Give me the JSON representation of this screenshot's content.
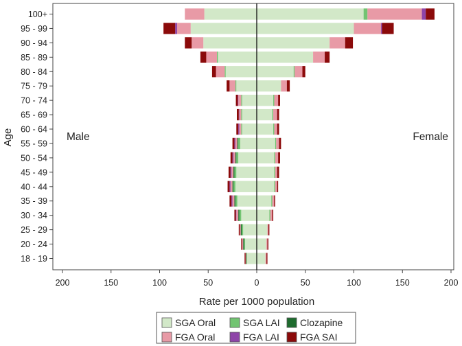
{
  "chart_data": {
    "type": "bar",
    "orientation": "horizontal-population-pyramid",
    "xlabel": "Rate per 1000 population",
    "ylabel": "Age",
    "left_label": "Male",
    "right_label": "Female",
    "xlim": [
      -200,
      200
    ],
    "xticks": [
      -200,
      -150,
      -100,
      -50,
      0,
      50,
      100,
      150,
      200
    ],
    "xtick_labels": [
      "200",
      "150",
      "100",
      "50",
      "0",
      "50",
      "100",
      "150",
      "200"
    ],
    "categories": [
      "18 - 19",
      "20 - 24",
      "25 - 29",
      "30 - 34",
      "35 - 39",
      "40 - 44",
      "45 - 49",
      "50 - 54",
      "55 - 59",
      "60 - 64",
      "65 - 69",
      "70 - 74",
      "75 - 79",
      "80 - 84",
      "85 - 89",
      "90 - 94",
      "95 - 99",
      "100+"
    ],
    "series": [
      {
        "name": "SGA Oral",
        "color": "#d2e8c8",
        "male": [
          10,
          12,
          14,
          16,
          20,
          22,
          21,
          19,
          17,
          15,
          15,
          15,
          21,
          32,
          40,
          55,
          68,
          54
        ],
        "female": [
          9,
          10,
          11,
          13,
          15,
          18,
          18,
          18,
          19,
          17,
          16,
          17,
          25,
          38,
          58,
          75,
          100,
          110
        ]
      },
      {
        "name": "SGA LAI",
        "color": "#72c472",
        "male": [
          0.5,
          1,
          1.5,
          2,
          2,
          2,
          2,
          2,
          2,
          1,
          1,
          1,
          1,
          1,
          1,
          0,
          0,
          0
        ],
        "female": [
          0,
          0,
          0,
          1,
          1,
          1,
          1,
          1,
          1,
          1,
          1,
          1,
          0,
          1,
          0,
          0,
          0,
          4
        ]
      },
      {
        "name": "Clozapine",
        "color": "#1e6b2e",
        "male": [
          0.5,
          1,
          1,
          1,
          1,
          1,
          1,
          1,
          1,
          0,
          0,
          0,
          0,
          0,
          0,
          0,
          0,
          0
        ],
        "female": [
          0,
          0,
          0,
          0,
          0,
          0,
          0,
          0,
          0,
          0,
          0,
          0,
          0,
          0,
          0,
          0,
          0,
          0
        ]
      },
      {
        "name": "FGA Oral",
        "color": "#e89aa6",
        "male": [
          0.5,
          1,
          1,
          2,
          2,
          2,
          2,
          2,
          2,
          2,
          2,
          3,
          6,
          9,
          11,
          12,
          14,
          20
        ],
        "female": [
          1,
          1,
          1,
          2,
          2,
          2,
          2,
          3,
          3,
          3,
          4,
          4,
          6,
          8,
          12,
          16,
          28,
          56
        ]
      },
      {
        "name": "FGA LAI",
        "color": "#8e44a8",
        "male": [
          0,
          0,
          0,
          0.5,
          1,
          1,
          1,
          1,
          1,
          1,
          0.5,
          0.5,
          0,
          0,
          0,
          0,
          2,
          0
        ],
        "female": [
          0,
          0,
          0,
          0,
          0,
          0,
          0,
          0,
          0,
          0,
          0,
          0,
          0,
          0,
          0,
          0,
          1,
          4
        ]
      },
      {
        "name": "FGA SAI",
        "color": "#8b0a0a",
        "male": [
          1,
          1,
          1,
          1.5,
          2,
          2,
          2,
          2,
          2,
          2,
          2,
          2,
          3,
          4,
          6,
          7,
          12,
          0
        ],
        "female": [
          1,
          1,
          1,
          1,
          1,
          1,
          2,
          2,
          2,
          2,
          2,
          2,
          3,
          3,
          5,
          8,
          12,
          9
        ]
      }
    ],
    "legend_rows": [
      [
        "SGA Oral",
        "SGA LAI",
        "Clozapine"
      ],
      [
        "FGA Oral",
        "FGA LAI",
        "FGA SAI"
      ]
    ],
    "legend_position": "bottom",
    "grid": false
  }
}
